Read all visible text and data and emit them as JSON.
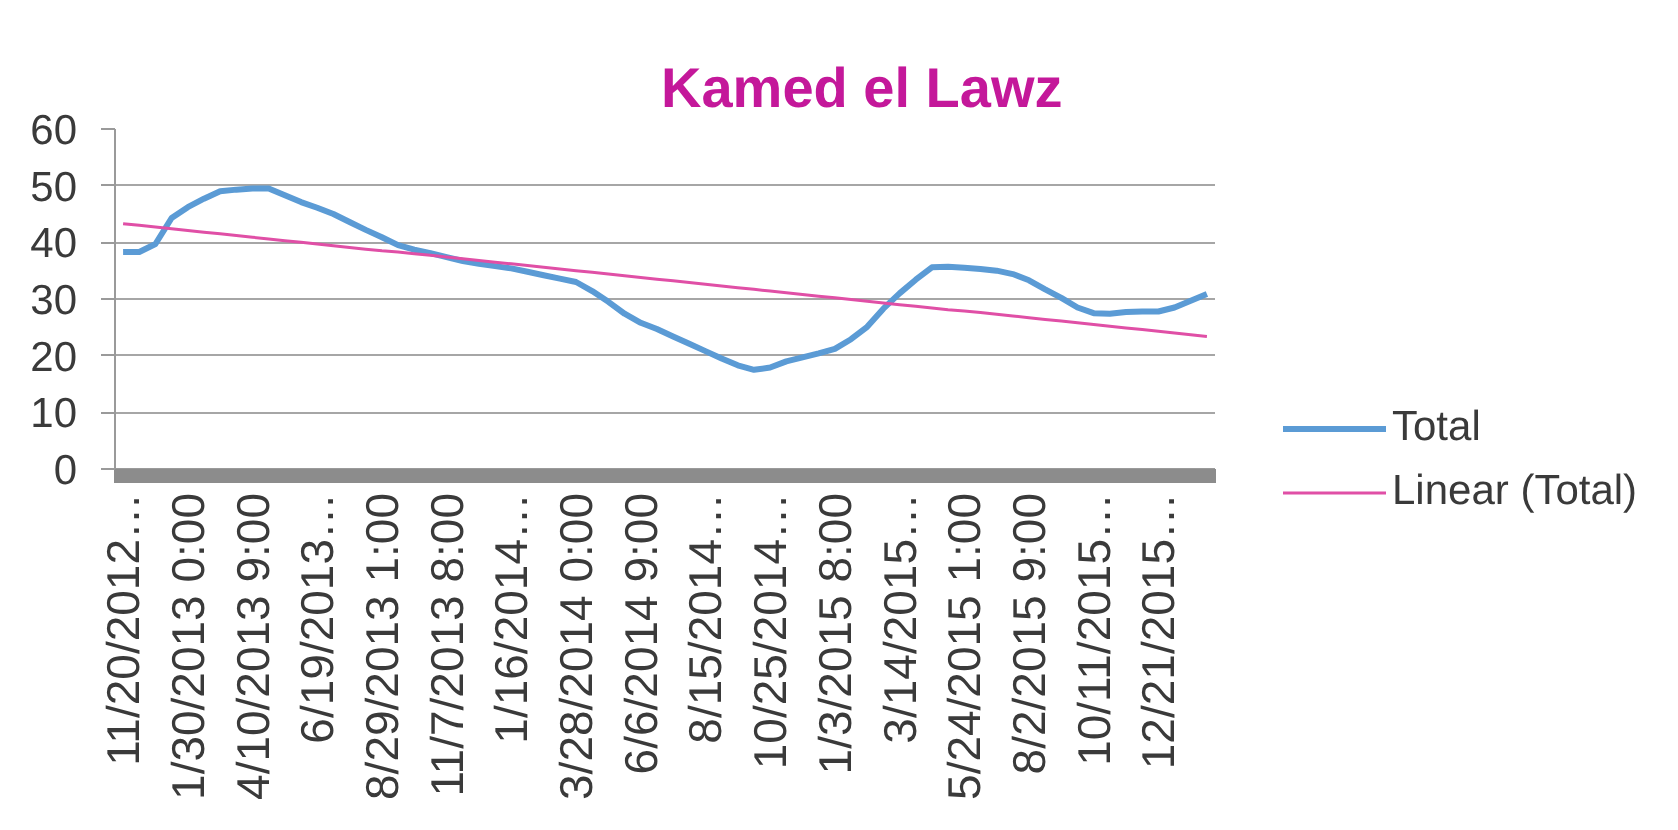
{
  "chart_data": {
    "type": "line",
    "title": "Kamed el Lawz",
    "categories": [
      "11/20/2012…",
      null,
      null,
      null,
      "1/30/2013 0:00",
      null,
      null,
      null,
      "4/10/2013 9:00",
      null,
      null,
      null,
      "6/19/2013…",
      null,
      null,
      null,
      "8/29/2013 1:00",
      null,
      null,
      null,
      "11/7/2013 8:00",
      null,
      null,
      null,
      "1/16/2014…",
      null,
      null,
      null,
      "3/28/2014 0:00",
      null,
      null,
      null,
      "6/6/2014 9:00",
      null,
      null,
      null,
      "8/15/2014…",
      null,
      null,
      null,
      "10/25/2014…",
      null,
      null,
      null,
      "1/3/2015 8:00",
      null,
      null,
      null,
      "3/14/2015…",
      null,
      null,
      null,
      "5/24/2015 1:00",
      null,
      null,
      null,
      "8/2/2015 9:00",
      null,
      null,
      null,
      "10/11/2015…",
      null,
      null,
      null,
      "12/21/2015…",
      null,
      null,
      null
    ],
    "ylim": [
      0,
      60
    ],
    "yticks": [
      0,
      10,
      20,
      30,
      40,
      50,
      60
    ],
    "grid": "y",
    "legend": "right",
    "series": [
      {
        "name": "Total",
        "color": "#5b9bd5",
        "values": [
          38.3,
          38.3,
          39.7,
          44.3,
          46.2,
          47.7,
          49.0,
          49.3,
          49.5,
          49.5,
          48.3,
          47.1,
          46.1,
          45.0,
          43.6,
          42.2,
          40.9,
          39.5,
          38.7,
          38.1,
          37.4,
          36.7,
          36.2,
          35.8,
          35.4,
          34.8,
          34.2,
          33.6,
          33.0,
          31.4,
          29.5,
          27.4,
          25.8,
          24.7,
          23.4,
          22.1,
          20.8,
          19.5,
          18.3,
          17.5,
          17.9,
          19.0,
          19.7,
          20.4,
          21.2,
          22.9,
          25.1,
          28.3,
          31.0,
          33.4,
          35.6,
          35.7,
          35.5,
          35.3,
          35.0,
          34.4,
          33.3,
          31.7,
          30.2,
          28.5,
          27.5,
          27.4,
          27.7,
          27.8,
          27.8,
          28.5,
          29.7,
          30.9
        ]
      },
      {
        "name": "Linear (Total)",
        "type": "line",
        "color": "#e04fa6",
        "values": [
          43.3,
          43.0,
          42.7,
          42.4,
          42.1,
          41.8,
          41.5,
          41.2,
          40.9,
          40.6,
          40.3,
          40.0,
          39.7,
          39.4,
          39.1,
          38.8,
          38.5,
          38.3,
          38.0,
          37.7,
          37.4,
          37.1,
          36.8,
          36.5,
          36.2,
          35.9,
          35.6,
          35.3,
          35.0,
          34.7,
          34.4,
          34.1,
          33.8,
          33.5,
          33.2,
          32.9,
          32.6,
          32.3,
          32.0,
          31.7,
          31.4,
          31.1,
          30.8,
          30.5,
          30.2,
          29.9,
          29.6,
          29.3,
          29.0,
          28.7,
          28.4,
          28.1,
          27.9,
          27.6,
          27.3,
          27.0,
          26.7,
          26.4,
          26.1,
          25.8,
          25.5,
          25.2,
          24.9,
          24.6,
          24.3,
          24.0,
          23.7,
          23.4
        ]
      }
    ]
  }
}
